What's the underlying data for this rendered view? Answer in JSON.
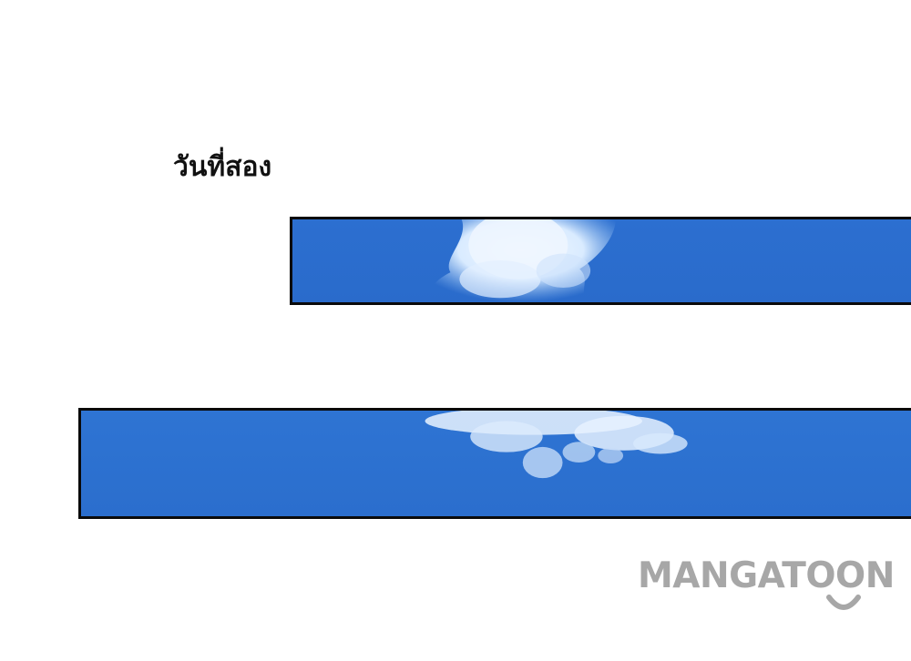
{
  "caption": {
    "text": "วันที่สอง"
  },
  "panels": [
    {
      "content": "blue sky with white cloud"
    },
    {
      "content": "blue sky with white cloud"
    }
  ],
  "watermark": {
    "text": "MANGATOON",
    "color": "#a7a7a7"
  },
  "colors": {
    "sky": "#2a6fcf",
    "cloud": "#eef6ff",
    "border": "#0a0a0a"
  }
}
